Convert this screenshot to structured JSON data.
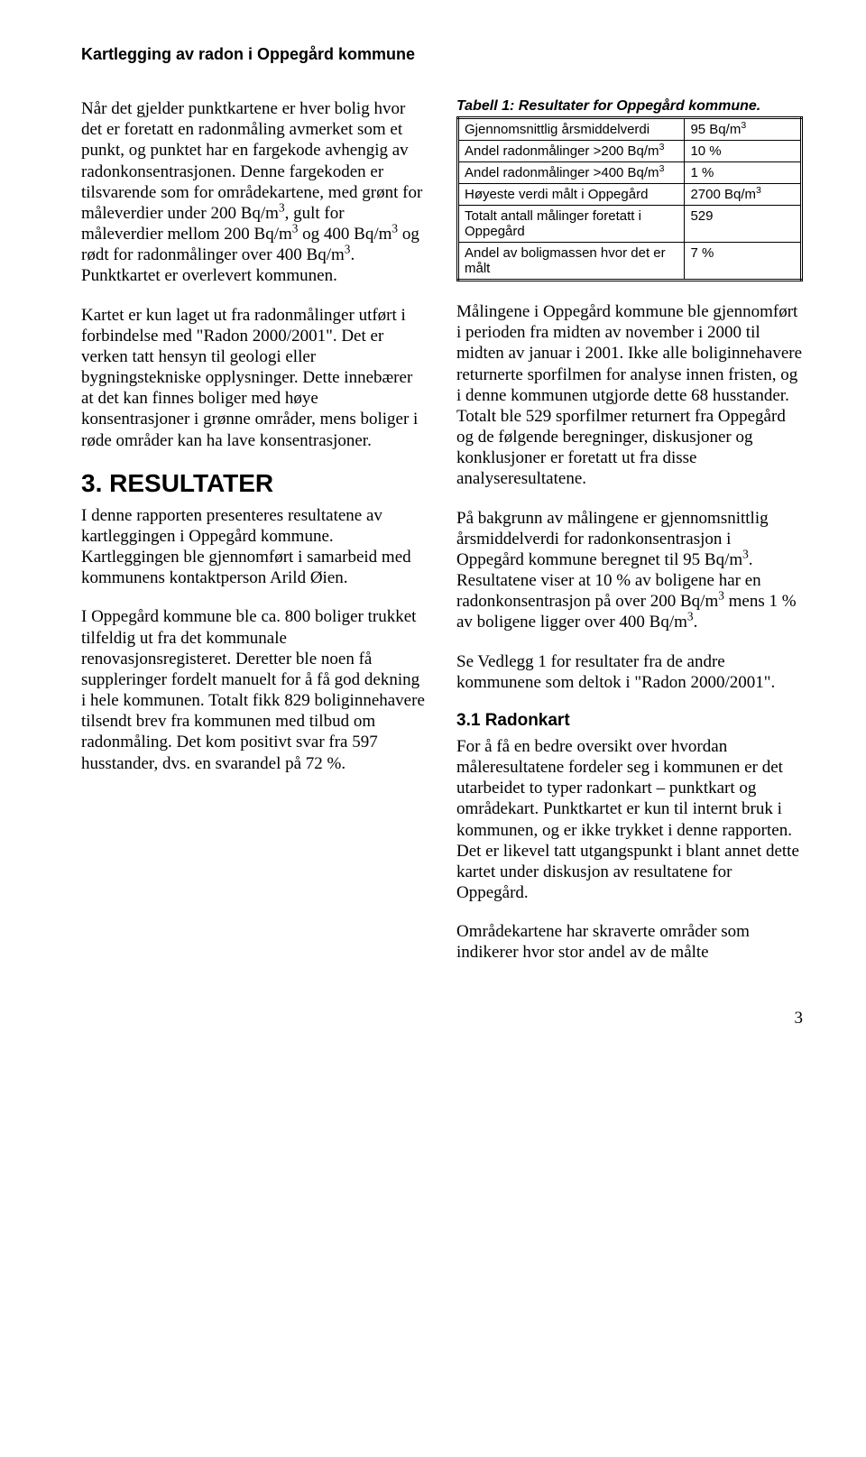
{
  "header": {
    "title": "Kartlegging av radon i Oppegård kommune"
  },
  "left": {
    "p1a": "Når det gjelder punktkartene er hver bolig hvor det er foretatt en radonmåling avmerket som et punkt, og punktet har en fargekode avhengig av radonkonsentrasjonen. Denne fargekoden er tilsvarende som for områdekartene, med grønt for måleverdier under 200 Bq/m",
    "p1b": ", gult for måleverdier mellom 200 Bq/m",
    "p1c": " og 400 Bq/m",
    "p1d": " og rødt for radonmålinger over 400 Bq/m",
    "p1e": ". Punktkartet er overlevert kommunen.",
    "p2": "Kartet er kun laget ut fra radonmålinger utført i forbindelse med \"Radon 2000/2001\". Det er verken tatt hensyn til geologi eller bygningstekniske opplysninger. Dette innebærer at det kan finnes boliger med høye konsentrasjoner i grønne områder, mens boliger i røde områder kan ha lave konsentrasjoner.",
    "h2": "3.  RESULTATER",
    "p3": "I denne rapporten presenteres resultatene av kartleggingen i Oppegård kommune. Kartleggingen ble gjennomført i samarbeid med kommunens kontaktperson Arild Øien.",
    "p4": "I Oppegård kommune ble ca. 800 boliger trukket tilfeldig ut fra det kommunale renovasjonsregisteret. Deretter ble noen få suppleringer fordelt manuelt for å få god dekning i hele kommunen. Totalt fikk 829 boliginnehavere tilsendt brev fra kommunen med tilbud om radonmåling. Det kom positivt svar fra 597 husstander, dvs. en svarandel på 72 %."
  },
  "table": {
    "caption": "Tabell 1: Resultater for Oppegård kommune.",
    "rows": [
      {
        "label": "Gjennomsnittlig årsmiddelverdi",
        "value_pre": "95 Bq/m",
        "value_sup": "3",
        "value_post": ""
      },
      {
        "label": "Andel radonmålinger >200 Bq/m",
        "label_sup": "3",
        "value_pre": "10 %",
        "value_sup": "",
        "value_post": ""
      },
      {
        "label": "Andel radonmålinger >400 Bq/m",
        "label_sup": "3",
        "value_pre": "1 %",
        "value_sup": "",
        "value_post": ""
      },
      {
        "label": "Høyeste verdi målt i Oppegård",
        "value_pre": "2700 Bq/m",
        "value_sup": "3",
        "value_post": ""
      },
      {
        "label": "Totalt antall målinger foretatt i Oppegård",
        "value_pre": "529",
        "value_sup": "",
        "value_post": ""
      },
      {
        "label": "Andel av boligmassen hvor det er målt",
        "value_pre": "7 %",
        "value_sup": "",
        "value_post": ""
      }
    ]
  },
  "right": {
    "p1": "Målingene i Oppegård kommune ble gjennomført i perioden fra midten av november i 2000 til midten av januar i 2001. Ikke alle boliginnehavere returnerte sporfilmen for analyse innen fristen, og i denne kommunen utgjorde dette 68 husstander. Totalt ble 529 sporfilmer returnert fra Oppegård og de følgende beregninger, diskusjoner og konklusjoner er foretatt ut fra disse analyseresultatene.",
    "p2a": "På bakgrunn av målingene er gjennomsnittlig årsmiddelverdi for radonkonsentrasjon i Oppegård kommune beregnet til 95 Bq/m",
    "p2b": ". Resultatene viser at 10 % av boligene har en radonkonsentrasjon på over 200 Bq/m",
    "p2c": " mens 1 % av boligene ligger over 400 Bq/m",
    "p2d": ".",
    "p3": "Se Vedlegg 1 for resultater fra de andre kommunene som deltok i \"Radon 2000/2001\".",
    "h3": "3.1   Radonkart",
    "p4": "For å få en bedre oversikt over hvordan måleresultatene fordeler seg i kommunen er det utarbeidet to typer radonkart – punktkart og områdekart. Punktkartet er kun til internt bruk i kommunen, og er ikke trykket i denne rapporten. Det er likevel tatt utgangspunkt i blant annet dette kartet under diskusjon av resultatene for Oppegård.",
    "p5": "Områdekartene har skraverte områder som indikerer hvor stor andel av de målte"
  },
  "sup3": "3",
  "pagenum": "3"
}
